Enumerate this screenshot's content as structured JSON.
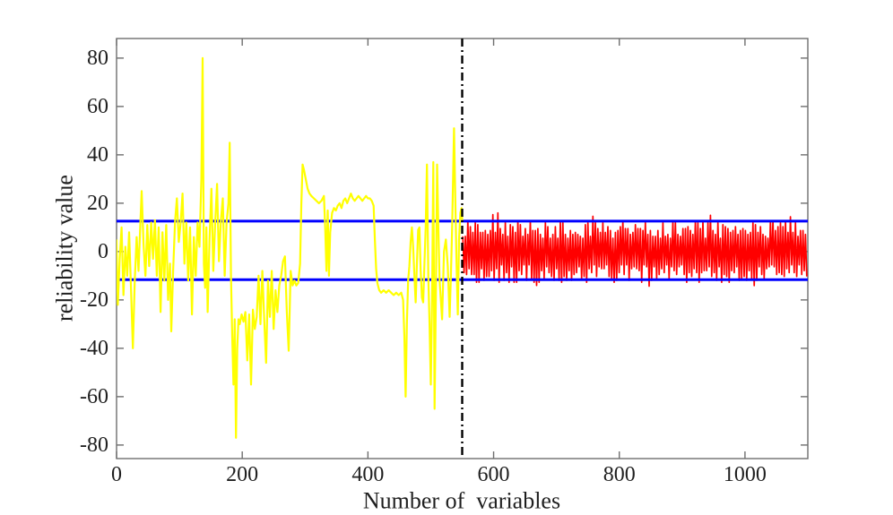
{
  "chart_data": {
    "type": "line",
    "title": "",
    "xlabel": "Number of  variables",
    "ylabel": "reliability value",
    "xlim": [
      0,
      1100
    ],
    "ylim": [
      -85.6,
      88.1
    ],
    "xticks": [
      0,
      200,
      400,
      600,
      800,
      1000
    ],
    "yticks": [
      -80,
      -60,
      -40,
      -20,
      0,
      20,
      40,
      60,
      80
    ],
    "grid": false,
    "legend": null,
    "frame_color": "#6e6e6e",
    "text_color": "#1f1f1f",
    "background": "#ffffff",
    "thresholds": [
      {
        "name": "upper-threshold-line",
        "y": 12.6,
        "color": "#0000ff",
        "width": 3
      },
      {
        "name": "lower-threshold-line",
        "y": -11.6,
        "color": "#0000ff",
        "width": 3
      }
    ],
    "vline": {
      "name": "split-line",
      "x": 550,
      "color": "#000000",
      "width": 2.4,
      "dash": "9 4 2 4"
    },
    "series": [
      {
        "name": "training-signal",
        "color": "#ffff00",
        "width": 2.2,
        "points": [
          [
            0,
            5
          ],
          [
            2,
            -22
          ],
          [
            5,
            -3
          ],
          [
            8,
            10
          ],
          [
            11,
            -18
          ],
          [
            14,
            2
          ],
          [
            17,
            -10
          ],
          [
            20,
            8
          ],
          [
            23,
            -15
          ],
          [
            26,
            -40
          ],
          [
            29,
            -12
          ],
          [
            32,
            6
          ],
          [
            35,
            -8
          ],
          [
            38,
            12
          ],
          [
            40,
            25
          ],
          [
            43,
            3
          ],
          [
            46,
            -10
          ],
          [
            49,
            11
          ],
          [
            52,
            -6
          ],
          [
            55,
            12
          ],
          [
            58,
            -3
          ],
          [
            61,
            13
          ],
          [
            64,
            -10
          ],
          [
            67,
            10
          ],
          [
            70,
            -25
          ],
          [
            73,
            8
          ],
          [
            76,
            -12
          ],
          [
            79,
            11
          ],
          [
            82,
            -20
          ],
          [
            85,
            -5
          ],
          [
            87,
            -33
          ],
          [
            90,
            -8
          ],
          [
            93,
            12
          ],
          [
            96,
            22
          ],
          [
            99,
            4
          ],
          [
            102,
            12
          ],
          [
            105,
            24
          ],
          [
            108,
            -5
          ],
          [
            111,
            12
          ],
          [
            114,
            -12
          ],
          [
            117,
            10
          ],
          [
            120,
            -26
          ],
          [
            123,
            6
          ],
          [
            126,
            -10
          ],
          [
            129,
            12
          ],
          [
            132,
            2
          ],
          [
            135,
            30
          ],
          [
            137,
            80
          ],
          [
            139,
            -5
          ],
          [
            141,
            -15
          ],
          [
            143,
            10
          ],
          [
            145,
            -25
          ],
          [
            148,
            5
          ],
          [
            151,
            26
          ],
          [
            154,
            -8
          ],
          [
            157,
            12
          ],
          [
            160,
            28
          ],
          [
            163,
            -4
          ],
          [
            166,
            13
          ],
          [
            169,
            22
          ],
          [
            172,
            -10
          ],
          [
            175,
            12
          ],
          [
            178,
            20
          ],
          [
            180,
            45
          ],
          [
            182,
            -10
          ],
          [
            184,
            -35
          ],
          [
            186,
            -55
          ],
          [
            188,
            -28
          ],
          [
            190,
            -77
          ],
          [
            192,
            -40
          ],
          [
            194,
            -28
          ],
          [
            196,
            -30
          ],
          [
            199,
            -26
          ],
          [
            202,
            -29
          ],
          [
            205,
            -25
          ],
          [
            208,
            -45
          ],
          [
            211,
            -26
          ],
          [
            214,
            -55
          ],
          [
            217,
            -24
          ],
          [
            220,
            -32
          ],
          [
            223,
            -27
          ],
          [
            226,
            -10
          ],
          [
            229,
            -30
          ],
          [
            232,
            -8
          ],
          [
            235,
            -28
          ],
          [
            238,
            -46
          ],
          [
            241,
            -12
          ],
          [
            244,
            -27
          ],
          [
            247,
            -8
          ],
          [
            250,
            -32
          ],
          [
            253,
            -16
          ],
          [
            256,
            -25
          ],
          [
            259,
            -14
          ],
          [
            262,
            -10
          ],
          [
            265,
            -4
          ],
          [
            268,
            -2
          ],
          [
            271,
            -25
          ],
          [
            274,
            -41
          ],
          [
            277,
            -8
          ],
          [
            280,
            -14
          ],
          [
            283,
            -12
          ],
          [
            286,
            -14
          ],
          [
            289,
            -13
          ],
          [
            292,
            -5
          ],
          [
            294,
            20
          ],
          [
            296,
            36
          ],
          [
            298,
            34
          ],
          [
            301,
            30
          ],
          [
            304,
            26
          ],
          [
            307,
            24
          ],
          [
            310,
            23
          ],
          [
            314,
            22
          ],
          [
            318,
            21
          ],
          [
            322,
            20
          ],
          [
            326,
            21
          ],
          [
            330,
            23
          ],
          [
            332,
            10
          ],
          [
            334,
            -8
          ],
          [
            336,
            17
          ],
          [
            338,
            -10
          ],
          [
            340,
            8
          ],
          [
            343,
            16
          ],
          [
            346,
            18
          ],
          [
            349,
            17
          ],
          [
            352,
            19
          ],
          [
            355,
            20
          ],
          [
            358,
            18
          ],
          [
            361,
            21
          ],
          [
            364,
            22
          ],
          [
            367,
            20
          ],
          [
            370,
            22
          ],
          [
            373,
            24
          ],
          [
            376,
            22
          ],
          [
            379,
            21
          ],
          [
            382,
            22
          ],
          [
            385,
            23
          ],
          [
            388,
            22
          ],
          [
            391,
            21
          ],
          [
            394,
            22
          ],
          [
            397,
            23
          ],
          [
            400,
            22
          ],
          [
            403,
            22
          ],
          [
            406,
            21
          ],
          [
            409,
            19
          ],
          [
            411,
            5
          ],
          [
            413,
            -7
          ],
          [
            415,
            -13
          ],
          [
            418,
            -16
          ],
          [
            421,
            -17
          ],
          [
            425,
            -16
          ],
          [
            429,
            -17
          ],
          [
            433,
            -16
          ],
          [
            437,
            -17
          ],
          [
            441,
            -18
          ],
          [
            445,
            -17
          ],
          [
            449,
            -18
          ],
          [
            453,
            -17
          ],
          [
            456,
            -20
          ],
          [
            458,
            -35
          ],
          [
            460,
            -60
          ],
          [
            462,
            -30
          ],
          [
            464,
            -12
          ],
          [
            466,
            -6
          ],
          [
            468,
            4
          ],
          [
            470,
            10
          ],
          [
            472,
            2
          ],
          [
            474,
            -10
          ],
          [
            476,
            -21
          ],
          [
            478,
            -5
          ],
          [
            480,
            9
          ],
          [
            482,
            10
          ],
          [
            484,
            -8
          ],
          [
            486,
            -19
          ],
          [
            488,
            -21
          ],
          [
            490,
            -5
          ],
          [
            492,
            10
          ],
          [
            494,
            36
          ],
          [
            496,
            -10
          ],
          [
            498,
            -30
          ],
          [
            500,
            -55
          ],
          [
            502,
            -20
          ],
          [
            504,
            37
          ],
          [
            506,
            -65
          ],
          [
            508,
            -20
          ],
          [
            510,
            36
          ],
          [
            512,
            10
          ],
          [
            514,
            -12
          ],
          [
            516,
            -20
          ],
          [
            518,
            -28
          ],
          [
            521,
            0
          ],
          [
            524,
            5
          ],
          [
            527,
            -6
          ],
          [
            530,
            -27
          ],
          [
            532,
            -10
          ],
          [
            534,
            10
          ],
          [
            537,
            51
          ],
          [
            539,
            22
          ],
          [
            541,
            -5
          ],
          [
            543,
            -26
          ],
          [
            545,
            5
          ],
          [
            547,
            16
          ],
          [
            549,
            18
          ],
          [
            550,
            13
          ]
        ]
      },
      {
        "name": "testing-signal",
        "color": "#ff0000",
        "width": 1.7,
        "x_start": 551,
        "x_step": 1.99,
        "values": [
          6.3,
          -8.7,
          6.3,
          -9.5,
          12.7,
          -7.1,
          10.3,
          -9.5,
          7.9,
          -9.5,
          11.9,
          -12.7,
          11.1,
          -12.7,
          7.9,
          -7.1,
          7.9,
          -11.9,
          8.7,
          -10.3,
          7.1,
          -10.3,
          8.7,
          -7.9,
          15.3,
          -11.9,
          7.9,
          -7.1,
          16.0,
          -12.7,
          9.5,
          -5.5,
          7.1,
          -11.9,
          11.9,
          -8.7,
          6.3,
          -12.7,
          11.1,
          -6.3,
          10.3,
          -12.7,
          7.9,
          -12.7,
          12.7,
          -7.9,
          11.1,
          -9.5,
          6.3,
          -5.5,
          9.5,
          -11.9,
          7.1,
          -5.5,
          12.7,
          -11.1,
          8.7,
          -12.7,
          8.7,
          -14.0,
          9.5,
          -12.7,
          7.1,
          -7.9,
          5.5,
          -11.1,
          11.9,
          -6.3,
          10.3,
          -8.7,
          5.5,
          -10.3,
          7.1,
          -11.9,
          10.3,
          -7.1,
          5.5,
          -11.9,
          12.7,
          -12.7,
          11.9,
          -10.3,
          7.1,
          -11.9,
          5.5,
          -7.9,
          8.7,
          -11.9,
          7.1,
          -9.5,
          7.9,
          -8.7,
          7.1,
          -6.3,
          6.3,
          -11.1,
          5.5,
          -10.3,
          11.1,
          -12.7,
          11.9,
          -7.1,
          6.3,
          -8.7,
          14.6,
          -5.5,
          11.9,
          -10.3,
          9.5,
          -6.3,
          7.9,
          -7.1,
          11.9,
          -7.1,
          7.9,
          -5.5,
          10.3,
          -10.3,
          8.7,
          -11.1,
          5.5,
          -12.7,
          7.9,
          -11.9,
          8.7,
          -8.7,
          10.3,
          -5.5,
          12.7,
          -9.5,
          9.5,
          -5.5,
          9.5,
          -11.9,
          7.1,
          -7.1,
          7.9,
          -6.3,
          11.1,
          -7.1,
          9.5,
          -7.9,
          9.5,
          -12.7,
          8.7,
          -5.5,
          11.9,
          -6.3,
          7.1,
          -14.3,
          8.7,
          -11.9,
          6.3,
          -6.3,
          6.3,
          -11.1,
          8.7,
          -9.5,
          5.5,
          -7.1,
          11.9,
          -8.7,
          6.3,
          -5.5,
          7.1,
          -11.1,
          5.5,
          -6.3,
          12.7,
          -7.9,
          11.9,
          -9.5,
          7.1,
          -6.3,
          6.3,
          -5.5,
          9.5,
          -9.5,
          9.5,
          -12.7,
          10.3,
          -8.7,
          8.7,
          -10.3,
          7.1,
          -7.1,
          12.7,
          -8.7,
          11.9,
          -12.7,
          9.5,
          -8.7,
          12.7,
          -7.9,
          5.5,
          -7.9,
          11.9,
          -6.3,
          15.0,
          -10.3,
          8.7,
          -8.7,
          7.1,
          -11.9,
          11.9,
          -6.3,
          5.5,
          -12.7,
          11.1,
          -9.5,
          10.3,
          -10.3,
          9.5,
          -12.7,
          7.9,
          -7.9,
          8.7,
          -8.7,
          10.3,
          -6.3,
          7.1,
          -11.9,
          8.7,
          -11.1,
          9.5,
          -10.3,
          8.7,
          -11.9,
          7.1,
          -7.9,
          7.9,
          -11.1,
          11.9,
          -14.1,
          11.1,
          -11.9,
          7.9,
          -6.3,
          10.3,
          -9.5,
          7.1,
          -11.1,
          6.3,
          -7.1,
          5.5,
          -6.3,
          12.7,
          -5.5,
          12.7,
          -6.3,
          8.7,
          -9.5,
          10.3,
          -8.7,
          11.9,
          -9.5,
          10.3,
          -10.3,
          12.7,
          -7.1,
          7.9,
          -8.7,
          14.4,
          -5.5,
          7.9,
          -8.7,
          11.9,
          -10.3,
          6.3,
          -5.5,
          8.7,
          -9.5,
          8.7,
          -7.9,
          7.1,
          -10.3
        ]
      }
    ]
  }
}
